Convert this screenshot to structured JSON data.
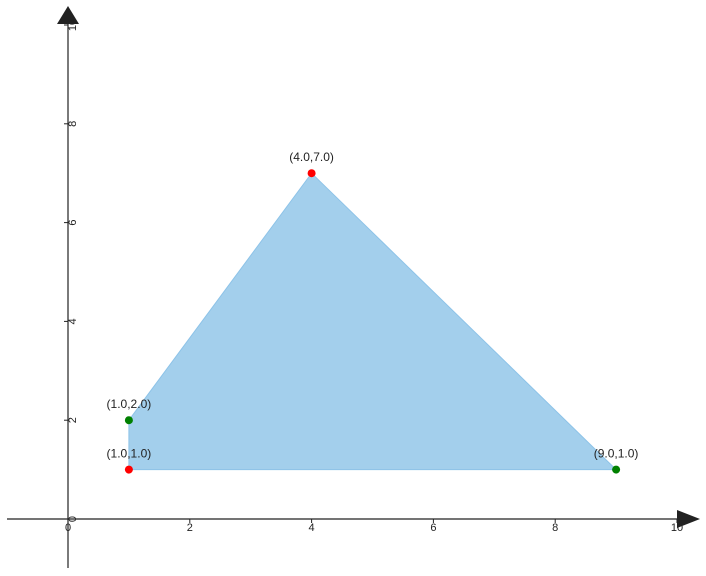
{
  "chart_data": {
    "type": "scatter",
    "title": "",
    "xlabel": "",
    "ylabel": "",
    "xlim": [
      -1,
      10
    ],
    "ylim": [
      -1,
      10
    ],
    "x_ticks": [
      0,
      2,
      4,
      6,
      8,
      10
    ],
    "y_ticks": [
      0,
      2,
      4,
      6,
      8,
      10
    ],
    "grid": false,
    "polygon": {
      "vertices": [
        [
          1.0,
          1.0
        ],
        [
          1.0,
          2.0
        ],
        [
          4.0,
          7.0
        ],
        [
          9.0,
          1.0
        ]
      ],
      "fill_color": "#a3cfec",
      "edge_color": "#8dc3e8"
    },
    "points": [
      {
        "x": 1.0,
        "y": 1.0,
        "label": "(1.0,1.0)",
        "color": "#ff0000"
      },
      {
        "x": 1.0,
        "y": 2.0,
        "label": "(1.0,2.0)",
        "color": "#008000"
      },
      {
        "x": 4.0,
        "y": 7.0,
        "label": "(4.0,7.0)",
        "color": "#ff0000"
      },
      {
        "x": 9.0,
        "y": 1.0,
        "label": "(9.0,1.0)",
        "color": "#008000"
      }
    ],
    "axis_color": "#222222"
  }
}
